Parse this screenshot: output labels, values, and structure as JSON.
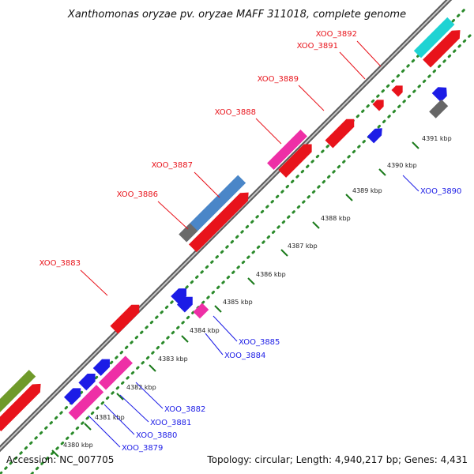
{
  "title": "Xanthomonas oryzae pv. oryzae MAFF 311018, complete genome",
  "footer": {
    "accession": "Accession: NC_007705",
    "topology": "Topology: circular; Length: 4,940,217 bp; Genes: 4,431"
  },
  "colors": {
    "forward_label": "#e8131b",
    "reverse_label": "#1c1ce6",
    "backbone": "#7a7a7a",
    "tick_mark": "#1a7a1a"
  },
  "ticks": [
    {
      "label": "4380 kbp"
    },
    {
      "label": "4381 kbp"
    },
    {
      "label": "4382 kbp"
    },
    {
      "label": "4383 kbp"
    },
    {
      "label": "4384 kbp"
    },
    {
      "label": "4385 kbp"
    },
    {
      "label": "4386 kbp"
    },
    {
      "label": "4387 kbp"
    },
    {
      "label": "4388 kbp"
    },
    {
      "label": "4389 kbp"
    },
    {
      "label": "4390 kbp"
    },
    {
      "label": "4391 kbp"
    }
  ],
  "gene_labels": [
    {
      "name": "XOO_3892",
      "strand": "forward"
    },
    {
      "name": "XOO_3891",
      "strand": "forward"
    },
    {
      "name": "XOO_3889",
      "strand": "forward"
    },
    {
      "name": "XOO_3888",
      "strand": "forward"
    },
    {
      "name": "XOO_3887",
      "strand": "forward"
    },
    {
      "name": "XOO_3886",
      "strand": "forward"
    },
    {
      "name": "XOO_3883",
      "strand": "forward"
    },
    {
      "name": "XOO_3890",
      "strand": "reverse"
    },
    {
      "name": "XOO_3885",
      "strand": "reverse"
    },
    {
      "name": "XOO_3884",
      "strand": "reverse"
    },
    {
      "name": "XOO_3882",
      "strand": "reverse"
    },
    {
      "name": "XOO_3881",
      "strand": "reverse"
    },
    {
      "name": "XOO_3880",
      "strand": "reverse"
    },
    {
      "name": "XOO_3879",
      "strand": "reverse"
    }
  ]
}
